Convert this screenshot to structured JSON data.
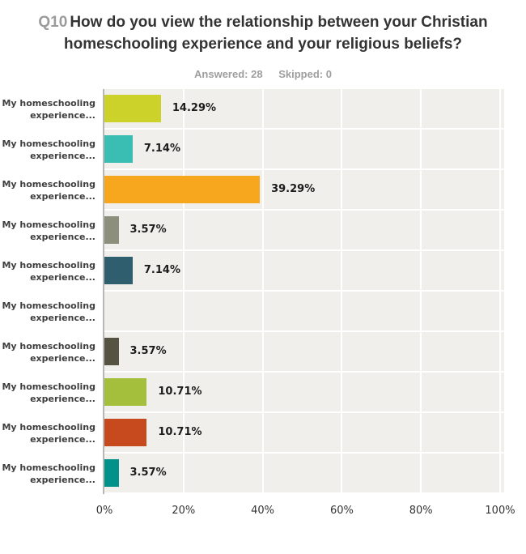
{
  "header": {
    "question_number": "Q10",
    "question_text": "How do you view the relationship between your Christian homeschooling experience and your religious beliefs?",
    "answered_label": "Answered: 28",
    "skipped_label": "Skipped: 0"
  },
  "chart_data": {
    "type": "bar",
    "orientation": "horizontal",
    "title": "Q10 How do you view the relationship between your Christian homeschooling experience and your religious beliefs?",
    "categories": [
      "My homeschooling experience...",
      "My homeschooling experience...",
      "My homeschooling experience...",
      "My homeschooling experience...",
      "My homeschooling experience...",
      "My homeschooling experience...",
      "My homeschooling experience...",
      "My homeschooling experience...",
      "My homeschooling experience...",
      "My homeschooling experience..."
    ],
    "values": [
      14.29,
      7.14,
      39.29,
      3.57,
      7.14,
      0,
      3.57,
      10.71,
      10.71,
      3.57
    ],
    "value_labels": [
      "14.29%",
      "7.14%",
      "39.29%",
      "3.57%",
      "7.14%",
      "",
      "3.57%",
      "10.71%",
      "10.71%",
      "3.57%"
    ],
    "bar_colors": [
      "#cdd22b",
      "#3abdb3",
      "#f6a71e",
      "#8d8f7d",
      "#2f5e6e",
      null,
      "#575342",
      "#a3bf3c",
      "#c7491e",
      "#00918a"
    ],
    "x_ticks": [
      "0%",
      "20%",
      "40%",
      "60%",
      "80%",
      "100%"
    ],
    "xlim": [
      0,
      100
    ],
    "grid": "vertical white gridlines every 20%",
    "legend": "none",
    "plot_bg": "#f0efec",
    "grid_color": "#ffffff",
    "axis_color": "#b7b7b7"
  }
}
